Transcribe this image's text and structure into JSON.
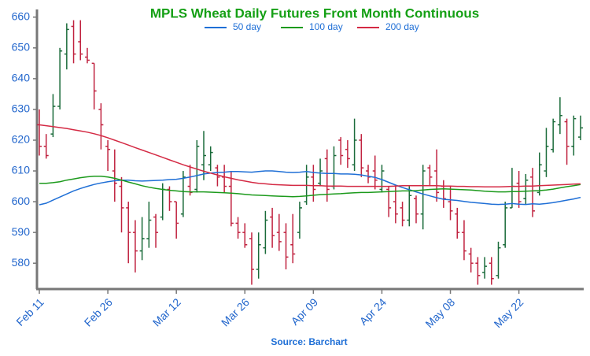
{
  "chart_data": {
    "type": "ohlc",
    "title": "MPLS Wheat Daily Futures Front Month Continuous",
    "source": "Source: Barchart",
    "categories": [
      "Feb 11",
      null,
      null,
      null,
      null,
      null,
      null,
      null,
      null,
      null,
      "Feb 26",
      null,
      null,
      null,
      null,
      null,
      null,
      null,
      null,
      null,
      "Mar 12",
      null,
      null,
      null,
      null,
      null,
      null,
      null,
      null,
      null,
      "Mar 26",
      null,
      null,
      null,
      null,
      null,
      null,
      null,
      null,
      null,
      "Apr 09",
      null,
      null,
      null,
      null,
      null,
      null,
      null,
      null,
      null,
      "Apr 24",
      null,
      null,
      null,
      null,
      null,
      null,
      null,
      null,
      null,
      "May 08",
      null,
      null,
      null,
      null,
      null,
      null,
      null,
      null,
      null,
      "May 22",
      null,
      null,
      null,
      null,
      null,
      null,
      null,
      null,
      null
    ],
    "open": [
      625,
      618,
      622,
      631,
      648,
      657,
      652,
      647,
      645,
      630,
      618,
      610,
      605,
      598,
      590,
      584,
      588,
      595,
      595,
      604,
      600,
      596,
      605,
      604,
      612,
      612,
      611,
      608,
      605,
      593,
      590,
      588,
      578,
      585,
      595,
      590,
      590,
      586,
      590,
      600,
      608,
      606,
      614,
      605,
      620,
      617,
      612,
      620,
      610,
      610,
      604,
      604,
      600,
      598,
      594,
      601,
      596,
      611,
      610,
      605,
      600,
      596,
      590,
      583,
      580,
      577,
      580,
      576,
      586,
      598,
      606,
      601,
      608,
      603,
      610,
      617,
      625,
      626,
      618,
      621
    ],
    "high": [
      630,
      622,
      635,
      650,
      658,
      659,
      659,
      650,
      645,
      632,
      620,
      617,
      608,
      600,
      594,
      595,
      600,
      596,
      606,
      605,
      600,
      610,
      612,
      620,
      623,
      618,
      612,
      612,
      610,
      595,
      593,
      590,
      590,
      597,
      598,
      596,
      593,
      596,
      600,
      612,
      612,
      614,
      617,
      618,
      621,
      620,
      627,
      622,
      612,
      615,
      612,
      605,
      605,
      600,
      605,
      602,
      612,
      612,
      617,
      607,
      605,
      598,
      594,
      585,
      582,
      582,
      582,
      587,
      600,
      611,
      610,
      609,
      611,
      616,
      624,
      627,
      634,
      627,
      628,
      628
    ],
    "low": [
      615,
      614,
      621,
      630,
      643,
      645,
      646,
      645,
      630,
      617,
      610,
      600,
      590,
      580,
      577,
      581,
      585,
      585,
      594,
      597,
      588,
      595,
      602,
      603,
      607,
      610,
      605,
      603,
      592,
      588,
      585,
      573,
      575,
      583,
      585,
      584,
      578,
      580,
      588,
      599,
      600,
      605,
      600,
      604,
      612,
      611,
      610,
      608,
      606,
      604,
      603,
      595,
      593,
      592,
      592,
      593,
      591,
      605,
      600,
      598,
      594,
      588,
      581,
      577,
      573,
      575,
      573,
      575,
      585,
      598,
      598,
      599,
      595,
      602,
      608,
      616,
      622,
      612,
      615,
      620
    ],
    "close": [
      618,
      615,
      631,
      649,
      656,
      648,
      648,
      646,
      636,
      625,
      617,
      606,
      598,
      590,
      584,
      588,
      594,
      590,
      604,
      600,
      593,
      608,
      603,
      618,
      615,
      616,
      608,
      605,
      593,
      590,
      586,
      578,
      586,
      594,
      589,
      587,
      582,
      583,
      598,
      608,
      604,
      610,
      604,
      615,
      615,
      614,
      620,
      611,
      608,
      607,
      610,
      598,
      596,
      594,
      602,
      596,
      610,
      608,
      603,
      601,
      597,
      590,
      584,
      580,
      576,
      579,
      575,
      585,
      598,
      605,
      600,
      607,
      597,
      612,
      618,
      626,
      628,
      618,
      627,
      624
    ],
    "up_color": "#1a6b3a",
    "down_color": "#c0223f",
    "series": [
      {
        "name": "50 day",
        "color": "#1f6fd6",
        "values": [
          599,
          599.5,
          600.5,
          601.5,
          602.5,
          603.5,
          604.3,
          605,
          605.6,
          606.1,
          606.5,
          606.8,
          607,
          607,
          606.8,
          606.7,
          606.8,
          606.9,
          607,
          607.2,
          607.3,
          607.6,
          608,
          608.5,
          609,
          609.3,
          609.5,
          609.6,
          609.8,
          609.8,
          609.7,
          609.6,
          609.8,
          610,
          610,
          609.8,
          609.6,
          609.5,
          609.6,
          609.8,
          609.5,
          609.3,
          609.2,
          609.2,
          609,
          609,
          608.9,
          608.7,
          608.3,
          607.9,
          607.2,
          606.3,
          605.4,
          604.6,
          603.9,
          603.2,
          602.5,
          601.9,
          601.3,
          600.8,
          600.6,
          600.4,
          600.1,
          599.8,
          599.6,
          599.4,
          599.2,
          599.1,
          599.2,
          599.4,
          599.2,
          599.1,
          599.3,
          599.2,
          599.4,
          599.7,
          600.1,
          600.5,
          600.9,
          601.4
        ]
      },
      {
        "name": "100 day",
        "color": "#1c9a1c",
        "values": [
          606,
          606,
          606.2,
          606.5,
          607,
          607.4,
          607.8,
          608.1,
          608.3,
          608.3,
          608,
          607.6,
          607,
          606.4,
          605.8,
          605.2,
          604.7,
          604.3,
          604,
          603.7,
          603.5,
          603.3,
          603.2,
          603.2,
          603.2,
          603.1,
          603,
          602.9,
          602.8,
          602.6,
          602.4,
          602.2,
          602.1,
          602,
          601.9,
          601.8,
          601.7,
          601.6,
          601.7,
          601.9,
          602.1,
          602.3,
          602.4,
          602.5,
          602.6,
          602.8,
          602.9,
          603,
          603,
          603.1,
          603.2,
          603.3,
          603.4,
          603.5,
          603.5,
          603.6,
          603.8,
          604,
          604.1,
          604.2,
          604.1,
          604,
          603.9,
          603.8,
          603.6,
          603.4,
          603.3,
          603.2,
          603.2,
          603.3,
          603.3,
          603.4,
          603.5,
          603.6,
          603.8,
          604.1,
          604.5,
          604.9,
          605.2,
          605.6
        ]
      },
      {
        "name": "200 day",
        "color": "#d42a44",
        "values": [
          625,
          624.7,
          624.4,
          624.1,
          623.8,
          623.4,
          623,
          622.6,
          622.1,
          621.5,
          620.8,
          620,
          619.2,
          618.4,
          617.6,
          616.8,
          616,
          615.2,
          614.4,
          613.6,
          612.8,
          612,
          611.3,
          610.6,
          609.9,
          609.3,
          608.7,
          608.1,
          607.6,
          607.1,
          606.7,
          606.3,
          606,
          605.8,
          605.6,
          605.5,
          605.4,
          605.3,
          605.3,
          605.3,
          605.2,
          605.2,
          605.1,
          605.1,
          605.1,
          605,
          605,
          605,
          605,
          605,
          605,
          605,
          605.1,
          605.2,
          605.2,
          605.2,
          605.2,
          605.2,
          605.2,
          605.1,
          605.1,
          605,
          605,
          604.9,
          604.9,
          604.8,
          604.8,
          604.8,
          604.9,
          605,
          605,
          605.1,
          605.1,
          605.2,
          605.3,
          605.4,
          605.5,
          605.6,
          605.7,
          605.8
        ]
      }
    ],
    "ylim": [
      571.6,
      662.5
    ],
    "yticks": [
      580,
      590,
      600,
      610,
      620,
      630,
      640,
      650,
      660
    ]
  }
}
